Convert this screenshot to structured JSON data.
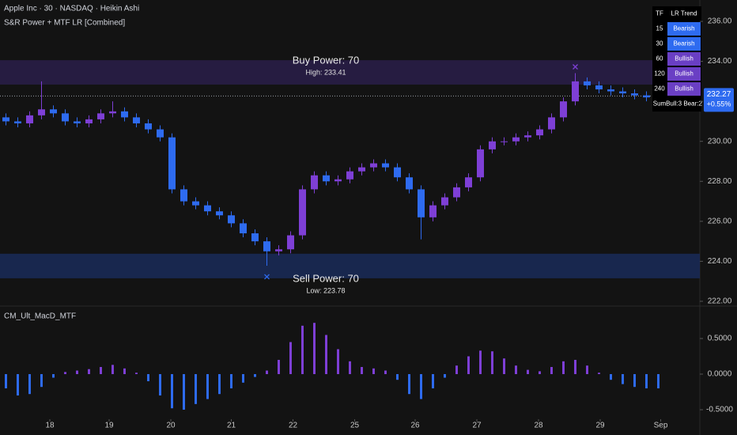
{
  "chart_data": {
    "type": "candlestick",
    "title": "Apple Inc · 30 · NASDAQ · Heikin Ashi",
    "subtitle": "S&R Power + MTF LR [Combined]",
    "up_color": "#7e3fd6",
    "down_color": "#2e6bf0",
    "ylim": [
      221.84,
      237.07
    ],
    "yticks": [
      {
        "value": 236,
        "label": "236.00"
      },
      {
        "value": 234,
        "label": "234.00"
      },
      {
        "value": 232,
        "label": "232.00"
      },
      {
        "value": 230,
        "label": "230.00"
      },
      {
        "value": 228,
        "label": "228.00"
      },
      {
        "value": 226,
        "label": "226.00"
      },
      {
        "value": 224,
        "label": "224.00"
      },
      {
        "value": 222,
        "label": "222.00"
      }
    ],
    "xlim": [
      -0.5,
      58.5
    ],
    "xticks": [
      {
        "value": 3.7,
        "label": "18"
      },
      {
        "value": 8.7,
        "label": "19"
      },
      {
        "value": 13.9,
        "label": "20"
      },
      {
        "value": 19.0,
        "label": "21"
      },
      {
        "value": 24.2,
        "label": "22"
      },
      {
        "value": 29.4,
        "label": "25"
      },
      {
        "value": 34.5,
        "label": "26"
      },
      {
        "value": 39.7,
        "label": "27"
      },
      {
        "value": 44.9,
        "label": "28"
      },
      {
        "value": 50.1,
        "label": "29"
      },
      {
        "value": 55.2,
        "label": "Sep"
      }
    ],
    "open": [
      231.2,
      231.0,
      230.9,
      231.3,
      231.6,
      231.4,
      231.0,
      230.9,
      231.1,
      231.4,
      231.5,
      231.2,
      230.9,
      230.6,
      230.2,
      227.6,
      227.0,
      226.8,
      226.5,
      226.3,
      225.9,
      225.4,
      225.0,
      224.5,
      224.6,
      225.3,
      227.6,
      228.3,
      228.0,
      228.1,
      228.5,
      228.7,
      228.9,
      228.7,
      228.2,
      227.6,
      226.2,
      226.8,
      227.2,
      227.7,
      228.2,
      229.6,
      230.0,
      230.0,
      230.2,
      230.3,
      230.6,
      231.2,
      232.0,
      233.0,
      232.8,
      232.6,
      232.5,
      232.4,
      232.3,
      232.2
    ],
    "high": [
      231.4,
      231.2,
      231.5,
      233.0,
      231.8,
      231.6,
      231.2,
      231.3,
      231.6,
      232.0,
      231.7,
      231.4,
      231.1,
      230.8,
      230.4,
      227.8,
      227.2,
      227.0,
      226.7,
      226.5,
      226.1,
      225.6,
      225.2,
      224.8,
      225.5,
      227.8,
      228.5,
      228.5,
      228.3,
      228.7,
      228.9,
      229.1,
      229.1,
      228.9,
      228.4,
      227.8,
      227.0,
      227.4,
      227.9,
      228.4,
      229.8,
      230.2,
      230.2,
      230.4,
      230.5,
      230.8,
      231.4,
      232.2,
      233.41,
      233.2,
      233.0,
      232.8,
      232.7,
      232.6,
      232.5,
      232.47
    ],
    "low": [
      230.8,
      230.7,
      230.7,
      231.1,
      231.2,
      230.8,
      230.7,
      230.7,
      230.9,
      231.2,
      231.0,
      230.7,
      230.4,
      230.0,
      227.4,
      226.8,
      226.6,
      226.3,
      226.1,
      225.7,
      225.2,
      224.8,
      223.78,
      224.3,
      224.4,
      225.1,
      227.4,
      227.8,
      227.8,
      227.9,
      228.3,
      228.5,
      228.5,
      228.0,
      227.4,
      225.1,
      226.0,
      226.6,
      227.0,
      227.5,
      228.0,
      229.4,
      229.8,
      229.8,
      230.0,
      230.1,
      230.4,
      231.0,
      231.8,
      232.6,
      232.4,
      232.3,
      232.2,
      232.1,
      232.0,
      232.0
    ],
    "close": [
      231.0,
      230.9,
      231.3,
      231.6,
      231.4,
      231.0,
      230.9,
      231.1,
      231.4,
      231.5,
      231.2,
      230.9,
      230.6,
      230.2,
      227.6,
      227.0,
      226.8,
      226.5,
      226.3,
      225.9,
      225.4,
      225.0,
      224.5,
      224.6,
      225.3,
      227.6,
      228.3,
      228.0,
      228.1,
      228.5,
      228.7,
      228.9,
      228.7,
      228.2,
      227.6,
      226.2,
      226.8,
      227.2,
      227.7,
      228.2,
      229.6,
      230.0,
      230.0,
      230.2,
      230.3,
      230.6,
      231.2,
      232.0,
      233.0,
      232.8,
      232.6,
      232.5,
      232.4,
      232.3,
      232.2,
      232.27
    ],
    "last_price": 232.27,
    "change_label": "+0.55%",
    "buy_zone": [
      232.84,
      234.06
    ],
    "sell_zone": [
      223.15,
      224.38
    ],
    "buy_title": "Buy Power: 70",
    "buy_note": "High: 233.41",
    "sell_title": "Sell Power: 70",
    "sell_note": "Low: 223.78",
    "indicator": {
      "type": "bar",
      "title": "CM_Ult_MacD_MTF",
      "up_color": "#7e3fd6",
      "down_color": "#2e6bf0",
      "ylim": [
        -0.633,
        0.9
      ],
      "yticks": [
        {
          "value": 0.5,
          "label": "0.5000"
        },
        {
          "value": 0,
          "label": "0.0000"
        },
        {
          "value": -0.5,
          "label": "-0.5000"
        }
      ],
      "values": [
        -0.2,
        -0.3,
        -0.28,
        -0.18,
        -0.05,
        0.03,
        0.05,
        0.07,
        0.1,
        0.13,
        0.08,
        0.02,
        -0.1,
        -0.3,
        -0.48,
        -0.5,
        -0.42,
        -0.35,
        -0.28,
        -0.2,
        -0.12,
        -0.04,
        0.05,
        0.2,
        0.45,
        0.68,
        0.72,
        0.55,
        0.35,
        0.18,
        0.1,
        0.08,
        0.05,
        -0.08,
        -0.28,
        -0.35,
        -0.2,
        -0.05,
        0.12,
        0.25,
        0.33,
        0.32,
        0.22,
        0.12,
        0.06,
        0.04,
        0.1,
        0.18,
        0.2,
        0.12,
        0.02,
        -0.08,
        -0.14,
        -0.18,
        -0.2,
        -0.2
      ]
    }
  },
  "table": {
    "header": [
      "TF",
      "LR Trend"
    ],
    "rows": [
      {
        "tf": "15",
        "trend": "Bearish",
        "color": "#2e6bf0"
      },
      {
        "tf": "30",
        "trend": "Bearish",
        "color": "#2e6bf0"
      },
      {
        "tf": "60",
        "trend": "Bullish",
        "color": "#6a3fc4"
      },
      {
        "tf": "120",
        "trend": "Bullish",
        "color": "#6a3fc4"
      },
      {
        "tf": "240",
        "trend": "Bullish",
        "color": "#6a3fc4"
      }
    ],
    "sum_label": "Sum",
    "sum_value": "Bull:3  Bear:2"
  }
}
